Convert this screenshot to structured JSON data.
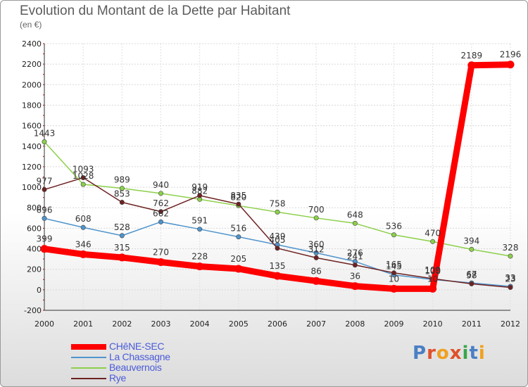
{
  "chart_data": {
    "type": "line",
    "title": "Evolution du Montant de la Dette par Habitant",
    "subtitle": "(en €)",
    "xlabel": "",
    "ylabel": "",
    "x": [
      "2000",
      "2001",
      "2002",
      "2003",
      "2004",
      "2005",
      "2006",
      "2007",
      "2008",
      "2009",
      "2010",
      "2011",
      "2012"
    ],
    "ylim": [
      -200,
      2400
    ],
    "yticks": [
      -200,
      0,
      200,
      400,
      600,
      800,
      1000,
      1200,
      1400,
      1600,
      1800,
      2000,
      2200,
      2400
    ],
    "legend_position": "bottom-left",
    "series": [
      {
        "name": "Beauvernois",
        "color": "#8cd04a",
        "values": [
          1443,
          1028,
          989,
          940,
          882,
          820,
          758,
          700,
          648,
          536,
          470,
          394,
          328
        ]
      },
      {
        "name": "La Chassagne",
        "color": "#4f94cc",
        "values": [
          696,
          608,
          528,
          662,
          591,
          516,
          439,
          360,
          276,
          145,
          100,
          67,
          33
        ]
      },
      {
        "name": "Rye",
        "color": "#6e2222",
        "values": [
          977,
          1093,
          853,
          762,
          919,
          835,
          405,
          312,
          241,
          165,
          109,
          58,
          23
        ]
      },
      {
        "name": "CHêNE-SEC",
        "color": "#ff0000",
        "values": [
          399,
          346,
          315,
          270,
          228,
          205,
          135,
          86,
          36,
          10,
          10,
          2189,
          2196
        ]
      }
    ]
  },
  "legend": [
    {
      "label": "CHêNE-SEC",
      "color": "#ff0000"
    },
    {
      "label": "La Chassagne",
      "color": "#4f94cc"
    },
    {
      "label": "Beauvernois",
      "color": "#8cd04a"
    },
    {
      "label": "Rye",
      "color": "#6e2222"
    }
  ],
  "logo": {
    "text": "Proxiti"
  }
}
